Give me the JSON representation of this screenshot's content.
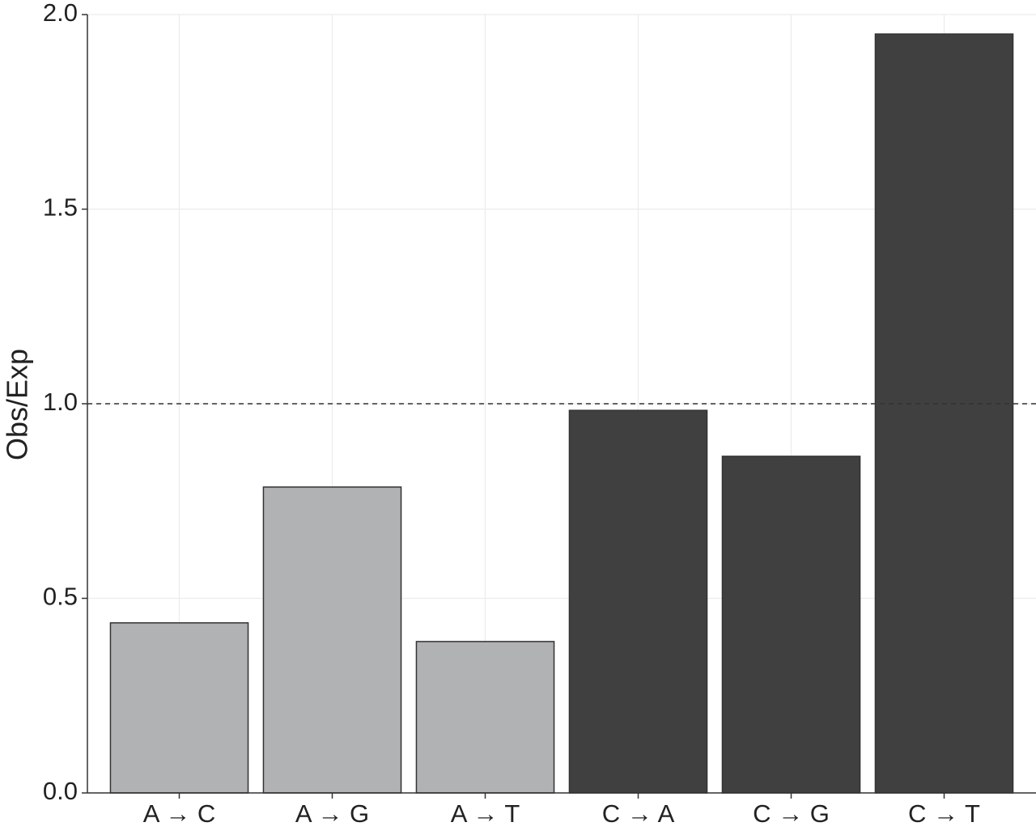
{
  "chart_data": {
    "type": "bar",
    "y_label": "Obs/Exp",
    "categories": [
      "A → C",
      "A → G",
      "A → T",
      "C → A",
      "C → G",
      "C → T"
    ],
    "values": [
      0.437,
      0.786,
      0.389,
      0.983,
      0.865,
      1.95
    ],
    "colors": [
      "#b1b2b4",
      "#b1b2b4",
      "#b1b2b4",
      "#404040",
      "#404040",
      "#404040"
    ],
    "ylim": [
      0,
      2
    ],
    "yticks": [
      {
        "value": 0,
        "label": "0.0"
      },
      0.5,
      {
        "value": 1,
        "label": "1.0"
      },
      1.5,
      {
        "value": 2,
        "label": "2.0"
      }
    ],
    "reference_line": 1,
    "grid": true
  }
}
